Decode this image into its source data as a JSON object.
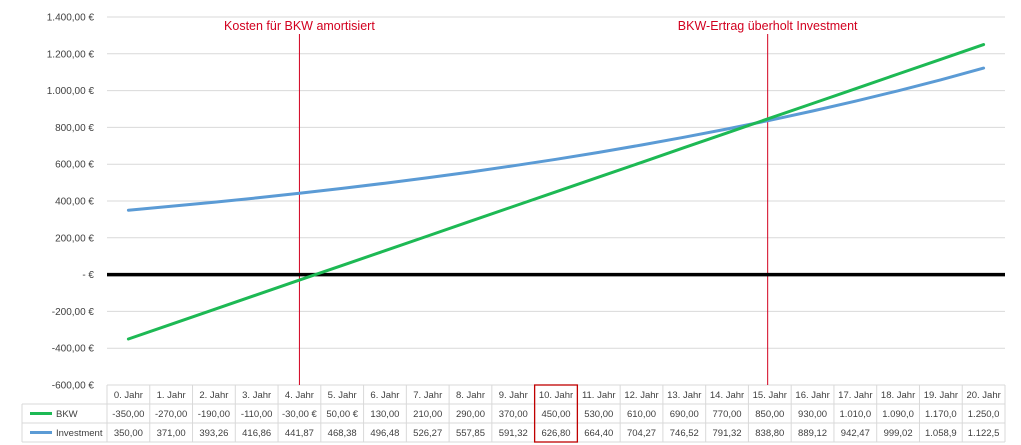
{
  "chart_data": {
    "type": "line",
    "title": "",
    "xlabel": "",
    "ylabel": "",
    "ylim": [
      -600,
      1400
    ],
    "y_ticks": [
      "1.400,00 €",
      "1.200,00 €",
      "1.000,00 €",
      "800,00 €",
      "600,00 €",
      "400,00 €",
      "200,00 €",
      "-  €",
      "-200,00 €",
      "-400,00 €",
      "-600,00 €"
    ],
    "y_tick_values": [
      1400,
      1200,
      1000,
      800,
      600,
      400,
      200,
      0,
      -200,
      -400,
      -600
    ],
    "grid": true,
    "legend": "bottom data table",
    "categories": [
      "0. Jahr",
      "1. Jahr",
      "2. Jahr",
      "3. Jahr",
      "4. Jahr",
      "5. Jahr",
      "6. Jahr",
      "7. Jahr",
      "8. Jahr",
      "9. Jahr",
      "10. Jahr",
      "11. Jahr",
      "12. Jahr",
      "13. Jahr",
      "14. Jahr",
      "15. Jahr",
      "16. Jahr",
      "17. Jahr",
      "18. Jahr",
      "19. Jahr",
      "20. Jahr"
    ],
    "highlighted_category": "10. Jahr",
    "series": [
      {
        "name": "BKW",
        "color": "#1db954",
        "values": [
          -350,
          -270,
          -190,
          -110,
          -30,
          50,
          130,
          210,
          290,
          370,
          450,
          530,
          610,
          690,
          770,
          850,
          930,
          1010,
          1090,
          1170,
          1250
        ],
        "labels": [
          "-350,00",
          "-270,00",
          "-190,00",
          "-110,00",
          "-30,00 €",
          "50,00 €",
          "130,00",
          "210,00",
          "290,00",
          "370,00",
          "450,00",
          "530,00",
          "610,00",
          "690,00",
          "770,00",
          "850,00",
          "930,00",
          "1.010,0",
          "1.090,0",
          "1.170,0",
          "1.250,0"
        ]
      },
      {
        "name": "Investment",
        "color": "#5b9bd5",
        "values": [
          350,
          371,
          393.26,
          416.86,
          441.87,
          468.38,
          496.48,
          526.27,
          557.85,
          591.32,
          626.8,
          664.4,
          704.27,
          746.52,
          791.32,
          838.8,
          889.12,
          942.47,
          999.02,
          1058.9,
          1122.5
        ],
        "labels": [
          "350,00",
          "371,00",
          "393,26",
          "416,86",
          "441,87",
          "468,38",
          "496,48",
          "526,27",
          "557,85",
          "591,32",
          "626,80",
          "664,40",
          "704,27",
          "746,52",
          "791,32",
          "838,80",
          "889,12",
          "942,47",
          "999,02",
          "1.058,9",
          "1.122,5"
        ]
      }
    ],
    "annotations": [
      {
        "text": "Kosten für BKW amortisiert",
        "x": 4.0,
        "color": "#d2001f"
      },
      {
        "text": "BKW-Ertrag überholt Investment",
        "x": 14.95,
        "color": "#d2001f"
      }
    ],
    "zero_line_color": "#000000"
  }
}
